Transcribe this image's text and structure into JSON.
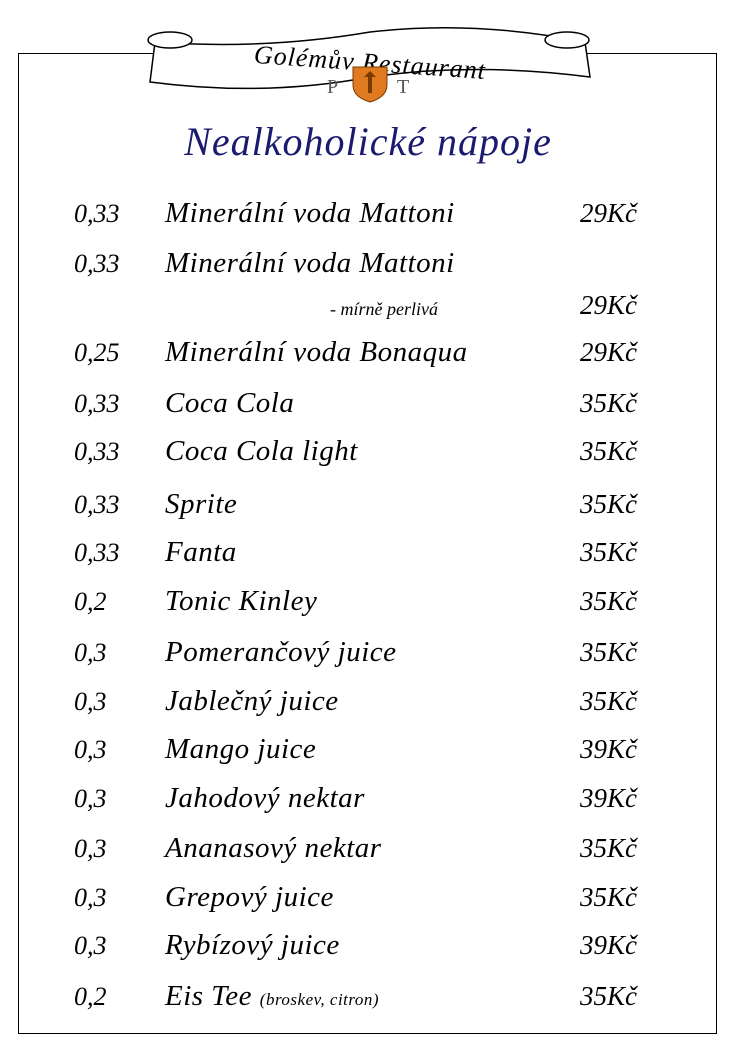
{
  "header": {
    "restaurant_name": "Golémův Restaurant",
    "logo_letters": "PT"
  },
  "title": "Nealkoholické nápoje",
  "items": [
    {
      "volume": "0,33",
      "name": "Minerální voda Mattoni",
      "price": "29Kč"
    },
    {
      "volume": "0,33",
      "name": "Minerální voda Mattoni",
      "subtitle": "- mírně perlivá",
      "price": "29Kč"
    },
    {
      "volume": "0,25",
      "name": "Minerální voda Bonaqua",
      "price": "29Kč"
    },
    {
      "volume": "0,33",
      "name": "Coca Cola",
      "price": "35Kč"
    },
    {
      "volume": "0,33",
      "name": "Coca Cola light",
      "price": "35Kč"
    },
    {
      "volume": "0,33",
      "name": "Sprite",
      "price": "35Kč"
    },
    {
      "volume": "0,33",
      "name": "Fanta",
      "price": "35Kč"
    },
    {
      "volume": "0,2",
      "name": "Tonic Kinley",
      "price": "35Kč"
    },
    {
      "volume": "0,3",
      "name": "Pomerančový juice",
      "price": "35Kč"
    },
    {
      "volume": "0,3",
      "name": "Jablečný juice",
      "price": "35Kč"
    },
    {
      "volume": "0,3",
      "name": "Mango juice",
      "price": "39Kč"
    },
    {
      "volume": "0,3",
      "name": "Jahodový nektar",
      "price": "39Kč"
    },
    {
      "volume": "0,3",
      "name": "Ananasový nektar",
      "price": "35Kč"
    },
    {
      "volume": "0,3",
      "name": "Grepový juice",
      "price": "35Kč"
    },
    {
      "volume": "0,3",
      "name": "Rybízový juice",
      "price": "39Kč"
    },
    {
      "volume": "0,2",
      "name": "Eis Tee",
      "note": "(broskev, citron)",
      "price": "35Kč"
    }
  ],
  "colors": {
    "title": "#1a1a6e",
    "logo_shield": "#e07a20"
  }
}
